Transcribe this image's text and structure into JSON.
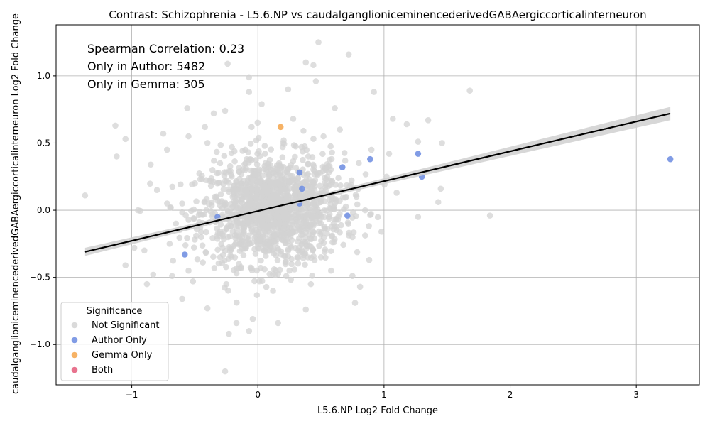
{
  "chart_data": {
    "type": "scatter",
    "title": "Contrast: Schizophrenia - L5.6.NP vs caudalganglioniceminencederivedGABAergiccorticalinterneuron",
    "xlabel": "L5.6.NP Log2 Fold Change",
    "ylabel": "caudalganglioniceminencederivedGABAergiccorticalinterneuron Log2 Fold Change",
    "xlim": [
      -1.6,
      3.5
    ],
    "ylim": [
      -1.3,
      1.38
    ],
    "xticks": [
      -1,
      0,
      1,
      2,
      3
    ],
    "yticks": [
      -1.0,
      -0.5,
      0.0,
      0.5,
      1.0
    ],
    "xtick_labels": [
      "−1",
      "0",
      "1",
      "2",
      "3"
    ],
    "ytick_labels": [
      "−1.0",
      "−0.5",
      "0.0",
      "0.5",
      "1.0"
    ],
    "grid": true,
    "annotations": [
      "Spearman Correlation: 0.23",
      "Only in Author: 5482",
      "Only in Gemma: 305"
    ],
    "legend": {
      "title": "Significance",
      "placement": "lower-left",
      "entries": [
        {
          "label": "Not Significant",
          "color": "#d3d3d3"
        },
        {
          "label": "Author Only",
          "color": "#6b8be0"
        },
        {
          "label": "Gemma Only",
          "color": "#f5a54a"
        },
        {
          "label": "Both",
          "color": "#e45a7a"
        }
      ]
    },
    "regression": {
      "x": [
        -1.37,
        3.27
      ],
      "y": [
        -0.31,
        0.72
      ],
      "band_color": "#d0d0d0",
      "line_color": "#000000"
    },
    "series": [
      {
        "name": "Not Significant",
        "color": "#d3d3d3",
        "points": [
          [
            -1.37,
            0.11
          ],
          [
            -1.13,
            0.63
          ],
          [
            -1.12,
            0.4
          ],
          [
            -1.05,
            0.53
          ],
          [
            -1.05,
            -0.41
          ],
          [
            -0.98,
            -0.28
          ],
          [
            -0.95,
            0.0
          ],
          [
            -0.88,
            -0.55
          ],
          [
            -0.85,
            0.34
          ],
          [
            -0.83,
            -0.48
          ],
          [
            -0.75,
            0.57
          ],
          [
            -0.72,
            0.45
          ],
          [
            -0.68,
            -0.49
          ],
          [
            -0.56,
            0.76
          ],
          [
            -0.55,
            0.55
          ],
          [
            -0.6,
            -0.66
          ],
          [
            -0.42,
            0.62
          ],
          [
            -0.4,
            -0.73
          ],
          [
            -0.35,
            0.72
          ],
          [
            -0.26,
            0.74
          ],
          [
            -0.24,
            1.09
          ],
          [
            -0.23,
            -0.92
          ],
          [
            -0.26,
            -1.2
          ],
          [
            -0.17,
            -0.84
          ],
          [
            -0.07,
            0.99
          ],
          [
            -0.07,
            0.88
          ],
          [
            -0.07,
            -0.9
          ],
          [
            0.03,
            0.79
          ],
          [
            0.16,
            -0.84
          ],
          [
            0.24,
            0.9
          ],
          [
            0.38,
            1.1
          ],
          [
            0.44,
            1.08
          ],
          [
            0.46,
            0.96
          ],
          [
            0.48,
            1.25
          ],
          [
            0.72,
            1.16
          ],
          [
            0.38,
            -0.74
          ],
          [
            0.61,
            0.76
          ],
          [
            0.77,
            -0.69
          ],
          [
            0.81,
            -0.57
          ],
          [
            0.92,
            0.88
          ],
          [
            1.07,
            0.68
          ],
          [
            1.18,
            0.64
          ],
          [
            1.27,
            0.51
          ],
          [
            1.35,
            0.67
          ],
          [
            1.46,
            0.5
          ],
          [
            1.43,
            0.06
          ],
          [
            1.45,
            0.16
          ],
          [
            1.27,
            -0.05
          ],
          [
            1.68,
            0.89
          ],
          [
            1.84,
            -0.04
          ],
          [
            1.04,
            0.42
          ],
          [
            1.1,
            0.13
          ],
          [
            0.98,
            -0.16
          ],
          [
            1.02,
            0.25
          ],
          [
            -0.5,
            0.2
          ],
          [
            -0.45,
            -0.2
          ],
          [
            -0.3,
            0.35
          ],
          [
            -0.3,
            -0.35
          ],
          [
            -0.2,
            0.1
          ],
          [
            -0.15,
            -0.4
          ],
          [
            -0.1,
            0.45
          ],
          [
            0.0,
            0.0
          ],
          [
            0.05,
            -0.3
          ],
          [
            0.1,
            0.3
          ],
          [
            0.15,
            -0.1
          ],
          [
            0.2,
            0.5
          ],
          [
            0.25,
            -0.45
          ],
          [
            0.3,
            0.15
          ],
          [
            0.35,
            -0.25
          ],
          [
            0.4,
            0.4
          ],
          [
            0.45,
            0.0
          ],
          [
            0.5,
            -0.35
          ],
          [
            0.55,
            0.25
          ],
          [
            0.6,
            -0.1
          ],
          [
            0.65,
            0.6
          ],
          [
            0.7,
            0.1
          ],
          [
            0.75,
            -0.2
          ],
          [
            0.8,
            0.35
          ],
          [
            0.85,
            0.0
          ],
          [
            0.9,
            0.45
          ],
          [
            -0.65,
            -0.1
          ],
          [
            -0.6,
            0.05
          ],
          [
            -0.7,
            -0.25
          ],
          [
            -0.8,
            0.15
          ],
          [
            -0.9,
            -0.3
          ],
          [
            -0.55,
            -0.45
          ],
          [
            -0.4,
            0.5
          ],
          [
            -0.25,
            -0.55
          ],
          [
            -0.05,
            0.62
          ],
          [
            0.12,
            -0.6
          ],
          [
            0.28,
            0.68
          ],
          [
            0.42,
            -0.55
          ],
          [
            0.52,
            0.55
          ],
          [
            0.58,
            -0.45
          ]
        ]
      },
      {
        "name": "Author Only",
        "color": "#6b8be0",
        "points": [
          [
            3.27,
            0.38
          ],
          [
            1.27,
            0.42
          ],
          [
            1.3,
            0.25
          ],
          [
            0.89,
            0.38
          ],
          [
            0.67,
            0.32
          ],
          [
            0.33,
            0.28
          ],
          [
            0.71,
            -0.04
          ],
          [
            -0.58,
            -0.33
          ],
          [
            0.33,
            0.05
          ],
          [
            -0.32,
            -0.05
          ],
          [
            0.35,
            0.16
          ]
        ]
      },
      {
        "name": "Gemma Only",
        "color": "#f5a54a",
        "points": [
          [
            0.18,
            0.62
          ]
        ]
      },
      {
        "name": "Both",
        "color": "#e45a7a",
        "points": []
      }
    ]
  }
}
